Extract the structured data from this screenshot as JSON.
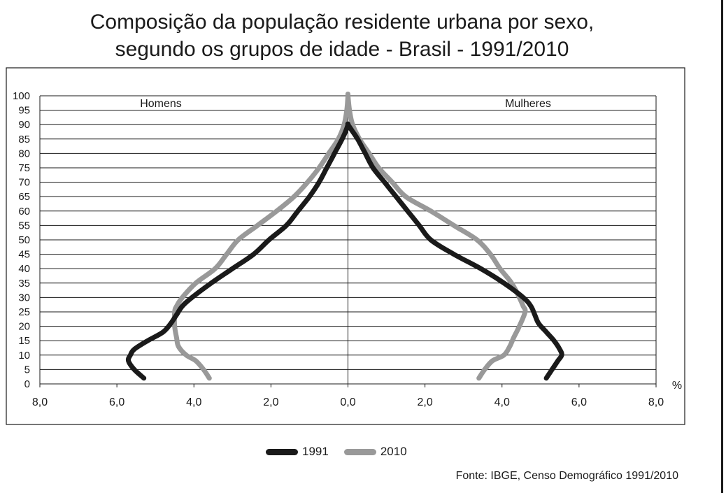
{
  "chart_data": {
    "type": "line",
    "title_lines": [
      "Composição da população residente urbana por sexo,",
      "segundo os grupos de idade - Brasil - 1991/2010"
    ],
    "side_labels": {
      "left": "Homens",
      "right": "Mulheres"
    },
    "x_unit_label": "%",
    "x_range": [
      -8,
      8
    ],
    "x_tick_values": [
      -8,
      -6,
      -4,
      -2,
      0,
      2,
      4,
      6,
      8
    ],
    "x_tick_labels": [
      "8,0",
      "6,0",
      "4,0",
      "2,0",
      "0,0",
      "2,0",
      "4,0",
      "6,0",
      "8,0"
    ],
    "y_range": [
      0,
      100
    ],
    "y_tick_values": [
      0,
      5,
      10,
      15,
      20,
      25,
      30,
      35,
      40,
      45,
      50,
      55,
      60,
      65,
      70,
      75,
      80,
      85,
      90,
      95,
      100
    ],
    "y_tick_labels": [
      "0",
      "5",
      "10",
      "15",
      "20",
      "25",
      "30",
      "35",
      "40",
      "45",
      "50",
      "55",
      "60",
      "65",
      "70",
      "75",
      "80",
      "85",
      "90",
      "95",
      "100"
    ],
    "grid": {
      "horizontal": true,
      "vertical": false
    },
    "legend_position": "bottom-center",
    "series": [
      {
        "name": "1991",
        "color": "#1a1a1a",
        "male": {
          "age": [
            2,
            5,
            8,
            10,
            12,
            15,
            18,
            21,
            24,
            27,
            30,
            35,
            40,
            45,
            50,
            55,
            60,
            65,
            70,
            75,
            80,
            85,
            88,
            90
          ],
          "value": [
            5.3,
            5.55,
            5.7,
            5.65,
            5.55,
            5.2,
            4.8,
            4.6,
            4.45,
            4.3,
            4.05,
            3.55,
            3.0,
            2.45,
            2.05,
            1.6,
            1.3,
            1.0,
            0.75,
            0.55,
            0.35,
            0.15,
            0.05,
            0.0
          ]
        },
        "female": {
          "age": [
            2,
            5,
            8,
            10,
            12,
            15,
            18,
            21,
            24,
            27,
            30,
            35,
            40,
            45,
            50,
            55,
            60,
            65,
            70,
            75,
            80,
            85,
            88,
            90
          ],
          "value": [
            5.15,
            5.3,
            5.45,
            5.55,
            5.5,
            5.35,
            5.15,
            4.95,
            4.85,
            4.75,
            4.55,
            4.05,
            3.45,
            2.75,
            2.15,
            1.85,
            1.55,
            1.25,
            0.95,
            0.65,
            0.45,
            0.25,
            0.1,
            0.0
          ]
        }
      },
      {
        "name": "2010",
        "color": "#999999",
        "male": {
          "age": [
            2,
            5,
            8,
            10,
            13,
            16,
            20,
            25,
            27,
            30,
            35,
            40,
            45,
            50,
            55,
            60,
            65,
            70,
            75,
            80,
            85,
            90,
            95,
            100
          ],
          "value": [
            3.6,
            3.75,
            3.95,
            4.2,
            4.4,
            4.45,
            4.5,
            4.5,
            4.45,
            4.3,
            3.95,
            3.45,
            3.15,
            2.85,
            2.35,
            1.85,
            1.4,
            1.05,
            0.75,
            0.5,
            0.25,
            0.1,
            0.03,
            0.0
          ]
        },
        "female": {
          "age": [
            2,
            5,
            8,
            10,
            13,
            16,
            20,
            25,
            27,
            30,
            35,
            40,
            45,
            50,
            55,
            60,
            65,
            70,
            75,
            80,
            85,
            90,
            95,
            100
          ],
          "value": [
            3.4,
            3.55,
            3.75,
            4.05,
            4.2,
            4.3,
            4.45,
            4.6,
            4.55,
            4.45,
            4.25,
            3.95,
            3.7,
            3.35,
            2.75,
            2.15,
            1.5,
            1.15,
            0.8,
            0.55,
            0.3,
            0.12,
            0.04,
            0.0
          ]
        }
      }
    ],
    "source": "Fonte: IBGE, Censo Demográfico 1991/2010"
  }
}
